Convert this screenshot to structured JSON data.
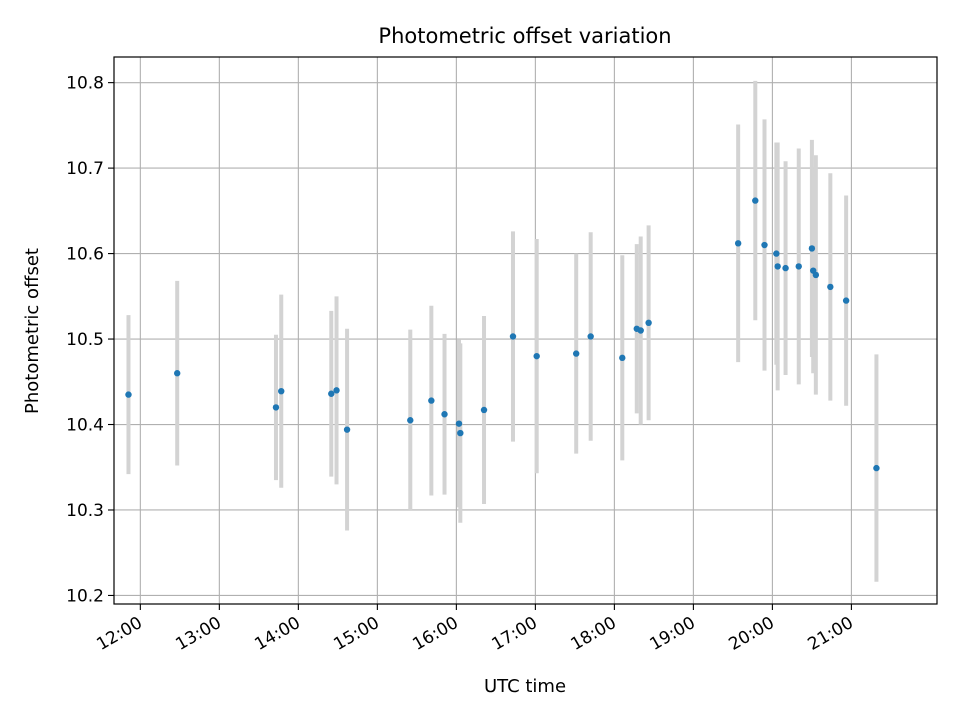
{
  "chart_data": {
    "type": "scatter",
    "title": "Photometric offset variation",
    "xlabel": "UTC time",
    "ylabel": "Photometric offset",
    "grid": true,
    "xlim": [
      "11:40",
      "22:05"
    ],
    "ylim": [
      10.19,
      10.83
    ],
    "x_ticks": [
      "12:00",
      "13:00",
      "14:00",
      "15:00",
      "16:00",
      "17:00",
      "18:00",
      "19:00",
      "20:00",
      "21:00"
    ],
    "y_ticks": [
      10.2,
      10.3,
      10.4,
      10.5,
      10.6,
      10.7,
      10.8
    ],
    "colors": {
      "point": "#1f77b4",
      "errorbar": "#d3d3d3",
      "grid": "#b0b0b0"
    },
    "points": [
      {
        "x": "11:51",
        "y": 10.435,
        "err": 0.093
      },
      {
        "x": "12:28",
        "y": 10.46,
        "err": 0.108
      },
      {
        "x": "13:43",
        "y": 10.42,
        "err": 0.085
      },
      {
        "x": "13:47",
        "y": 10.439,
        "err": 0.113
      },
      {
        "x": "14:25",
        "y": 10.436,
        "err": 0.097
      },
      {
        "x": "14:29",
        "y": 10.44,
        "err": 0.11
      },
      {
        "x": "14:37",
        "y": 10.394,
        "err": 0.118
      },
      {
        "x": "15:25",
        "y": 10.405,
        "err": 0.106
      },
      {
        "x": "15:41",
        "y": 10.428,
        "err": 0.111
      },
      {
        "x": "15:51",
        "y": 10.412,
        "err": 0.094
      },
      {
        "x": "16:02",
        "y": 10.401,
        "err": 0.098
      },
      {
        "x": "16:03",
        "y": 10.39,
        "err": 0.105
      },
      {
        "x": "16:21",
        "y": 10.417,
        "err": 0.11
      },
      {
        "x": "16:43",
        "y": 10.503,
        "err": 0.123
      },
      {
        "x": "17:01",
        "y": 10.48,
        "err": 0.137
      },
      {
        "x": "17:31",
        "y": 10.483,
        "err": 0.117
      },
      {
        "x": "17:42",
        "y": 10.503,
        "err": 0.122
      },
      {
        "x": "18:06",
        "y": 10.478,
        "err": 0.12
      },
      {
        "x": "18:17",
        "y": 10.512,
        "err": 0.099
      },
      {
        "x": "18:20",
        "y": 10.51,
        "err": 0.11
      },
      {
        "x": "18:26",
        "y": 10.519,
        "err": 0.114
      },
      {
        "x": "19:34",
        "y": 10.612,
        "err": 0.139
      },
      {
        "x": "19:47",
        "y": 10.662,
        "err": 0.14
      },
      {
        "x": "19:54",
        "y": 10.61,
        "err": 0.147
      },
      {
        "x": "20:03",
        "y": 10.6,
        "err": 0.13
      },
      {
        "x": "20:04",
        "y": 10.585,
        "err": 0.145
      },
      {
        "x": "20:10",
        "y": 10.583,
        "err": 0.125
      },
      {
        "x": "20:20",
        "y": 10.585,
        "err": 0.138
      },
      {
        "x": "20:30",
        "y": 10.606,
        "err": 0.127
      },
      {
        "x": "20:31",
        "y": 10.58,
        "err": 0.12
      },
      {
        "x": "20:33",
        "y": 10.575,
        "err": 0.14
      },
      {
        "x": "20:44",
        "y": 10.561,
        "err": 0.133
      },
      {
        "x": "20:56",
        "y": 10.545,
        "err": 0.123
      },
      {
        "x": "21:19",
        "y": 10.349,
        "err": 0.133
      }
    ]
  }
}
